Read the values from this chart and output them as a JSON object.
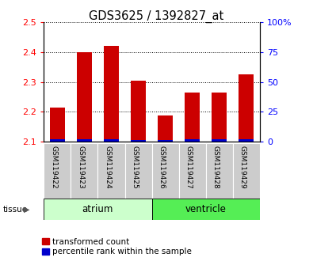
{
  "title": "GDS3625 / 1392827_at",
  "samples": [
    "GSM119422",
    "GSM119423",
    "GSM119424",
    "GSM119425",
    "GSM119426",
    "GSM119427",
    "GSM119428",
    "GSM119429"
  ],
  "red_values": [
    2.215,
    2.4,
    2.42,
    2.305,
    2.187,
    2.265,
    2.264,
    2.325
  ],
  "blue_values": [
    0.008,
    0.008,
    0.008,
    0.006,
    0.006,
    0.007,
    0.007,
    0.007
  ],
  "y_min": 2.1,
  "y_max": 2.5,
  "y_ticks": [
    2.1,
    2.2,
    2.3,
    2.4,
    2.5
  ],
  "y2_ticks": [
    0,
    25,
    50,
    75,
    100
  ],
  "tissue_groups": [
    {
      "label": "atrium",
      "start": 0,
      "end": 3,
      "color": "#ccffcc"
    },
    {
      "label": "ventricle",
      "start": 4,
      "end": 7,
      "color": "#55ee55"
    }
  ],
  "bar_width": 0.55,
  "red_color": "#cc0000",
  "blue_color": "#0000cc",
  "grid_color": "#000000",
  "label_bg": "#cccccc",
  "tissue_label": "tissue",
  "legend_red": "transformed count",
  "legend_blue": "percentile rank within the sample"
}
